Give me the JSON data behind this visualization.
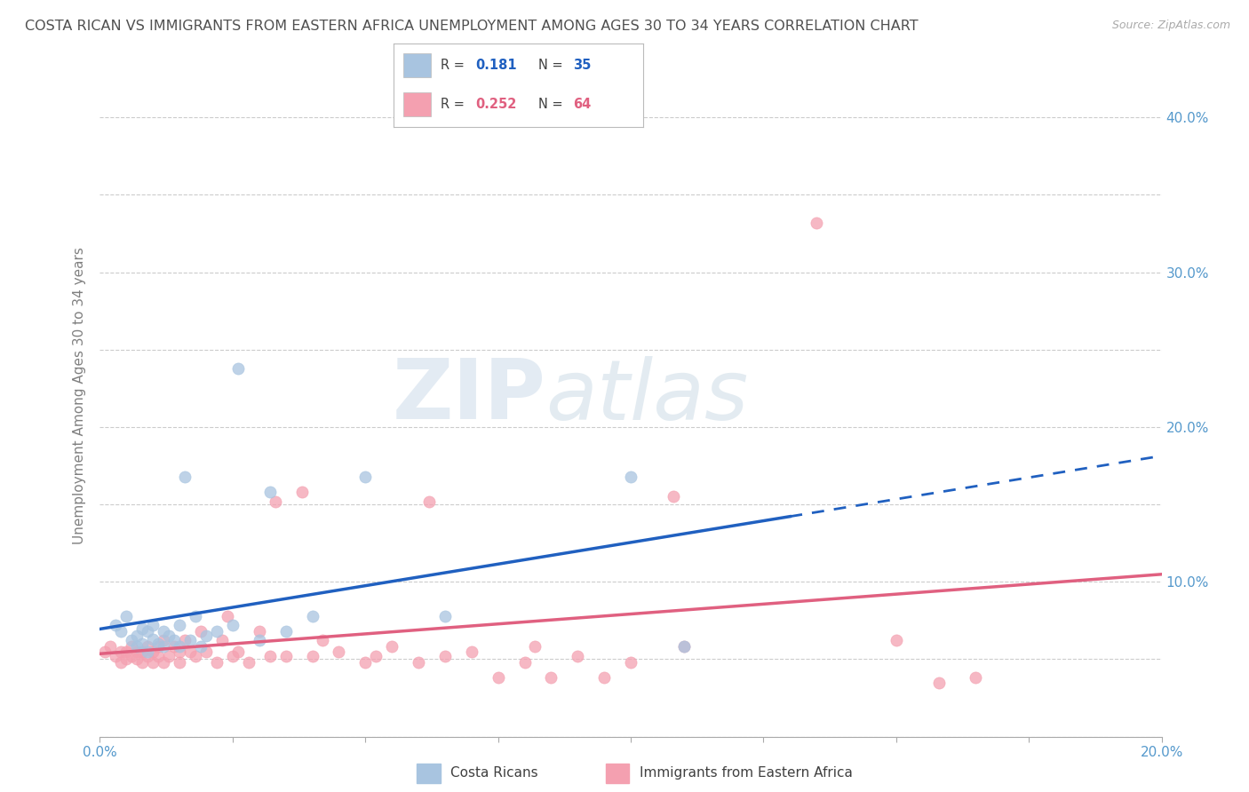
{
  "title": "COSTA RICAN VS IMMIGRANTS FROM EASTERN AFRICA UNEMPLOYMENT AMONG AGES 30 TO 34 YEARS CORRELATION CHART",
  "source": "Source: ZipAtlas.com",
  "ylabel": "Unemployment Among Ages 30 to 34 years",
  "xlim": [
    0.0,
    0.2
  ],
  "ylim": [
    0.0,
    0.44
  ],
  "xticks": [
    0.0,
    0.025,
    0.05,
    0.075,
    0.1,
    0.125,
    0.15,
    0.175,
    0.2
  ],
  "xticklabels": [
    "0.0%",
    "",
    "",
    "",
    "",
    "",
    "",
    "",
    "20.0%"
  ],
  "yticks": [
    0.0,
    0.05,
    0.1,
    0.15,
    0.2,
    0.25,
    0.3,
    0.35,
    0.4
  ],
  "right_yticklabels": [
    "",
    "",
    "10.0%",
    "",
    "20.0%",
    "",
    "30.0%",
    "",
    "40.0%"
  ],
  "costa_rican_R": "0.181",
  "costa_rican_N": "35",
  "eastern_africa_R": "0.252",
  "eastern_africa_N": "64",
  "costa_rican_color": "#a8c4e0",
  "eastern_africa_color": "#f4a0b0",
  "costa_rican_line_color": "#2060c0",
  "eastern_africa_line_color": "#e06080",
  "watermark_zip": "ZIP",
  "watermark_atlas": "atlas",
  "background_color": "#ffffff",
  "grid_color": "#cccccc",
  "title_color": "#505050",
  "axis_label_color": "#808080",
  "right_axis_color": "#5599cc",
  "costa_rican_scatter": [
    [
      0.003,
      0.072
    ],
    [
      0.004,
      0.068
    ],
    [
      0.005,
      0.078
    ],
    [
      0.006,
      0.062
    ],
    [
      0.007,
      0.065
    ],
    [
      0.007,
      0.058
    ],
    [
      0.008,
      0.07
    ],
    [
      0.008,
      0.06
    ],
    [
      0.009,
      0.068
    ],
    [
      0.009,
      0.055
    ],
    [
      0.01,
      0.072
    ],
    [
      0.01,
      0.063
    ],
    [
      0.011,
      0.06
    ],
    [
      0.012,
      0.068
    ],
    [
      0.012,
      0.058
    ],
    [
      0.013,
      0.065
    ],
    [
      0.014,
      0.062
    ],
    [
      0.015,
      0.072
    ],
    [
      0.015,
      0.058
    ],
    [
      0.016,
      0.168
    ],
    [
      0.017,
      0.062
    ],
    [
      0.018,
      0.078
    ],
    [
      0.019,
      0.058
    ],
    [
      0.02,
      0.065
    ],
    [
      0.022,
      0.068
    ],
    [
      0.025,
      0.072
    ],
    [
      0.026,
      0.238
    ],
    [
      0.03,
      0.062
    ],
    [
      0.032,
      0.158
    ],
    [
      0.035,
      0.068
    ],
    [
      0.04,
      0.078
    ],
    [
      0.05,
      0.168
    ],
    [
      0.065,
      0.078
    ],
    [
      0.1,
      0.168
    ],
    [
      0.11,
      0.058
    ]
  ],
  "eastern_africa_scatter": [
    [
      0.001,
      0.055
    ],
    [
      0.002,
      0.058
    ],
    [
      0.003,
      0.052
    ],
    [
      0.004,
      0.055
    ],
    [
      0.004,
      0.048
    ],
    [
      0.005,
      0.055
    ],
    [
      0.005,
      0.05
    ],
    [
      0.006,
      0.052
    ],
    [
      0.006,
      0.058
    ],
    [
      0.007,
      0.055
    ],
    [
      0.007,
      0.05
    ],
    [
      0.008,
      0.055
    ],
    [
      0.008,
      0.048
    ],
    [
      0.009,
      0.052
    ],
    [
      0.009,
      0.058
    ],
    [
      0.01,
      0.048
    ],
    [
      0.01,
      0.055
    ],
    [
      0.011,
      0.052
    ],
    [
      0.011,
      0.058
    ],
    [
      0.012,
      0.048
    ],
    [
      0.012,
      0.062
    ],
    [
      0.013,
      0.052
    ],
    [
      0.014,
      0.058
    ],
    [
      0.015,
      0.048
    ],
    [
      0.015,
      0.055
    ],
    [
      0.016,
      0.062
    ],
    [
      0.017,
      0.055
    ],
    [
      0.018,
      0.052
    ],
    [
      0.019,
      0.068
    ],
    [
      0.02,
      0.055
    ],
    [
      0.022,
      0.048
    ],
    [
      0.023,
      0.062
    ],
    [
      0.024,
      0.078
    ],
    [
      0.025,
      0.052
    ],
    [
      0.026,
      0.055
    ],
    [
      0.028,
      0.048
    ],
    [
      0.03,
      0.068
    ],
    [
      0.032,
      0.052
    ],
    [
      0.033,
      0.152
    ],
    [
      0.035,
      0.052
    ],
    [
      0.038,
      0.158
    ],
    [
      0.04,
      0.052
    ],
    [
      0.042,
      0.062
    ],
    [
      0.045,
      0.055
    ],
    [
      0.05,
      0.048
    ],
    [
      0.052,
      0.052
    ],
    [
      0.055,
      0.058
    ],
    [
      0.06,
      0.048
    ],
    [
      0.062,
      0.152
    ],
    [
      0.065,
      0.052
    ],
    [
      0.07,
      0.055
    ],
    [
      0.075,
      0.038
    ],
    [
      0.08,
      0.048
    ],
    [
      0.082,
      0.058
    ],
    [
      0.085,
      0.038
    ],
    [
      0.09,
      0.052
    ],
    [
      0.095,
      0.038
    ],
    [
      0.1,
      0.048
    ],
    [
      0.108,
      0.155
    ],
    [
      0.11,
      0.058
    ],
    [
      0.135,
      0.332
    ],
    [
      0.15,
      0.062
    ],
    [
      0.158,
      0.035
    ],
    [
      0.165,
      0.038
    ]
  ]
}
